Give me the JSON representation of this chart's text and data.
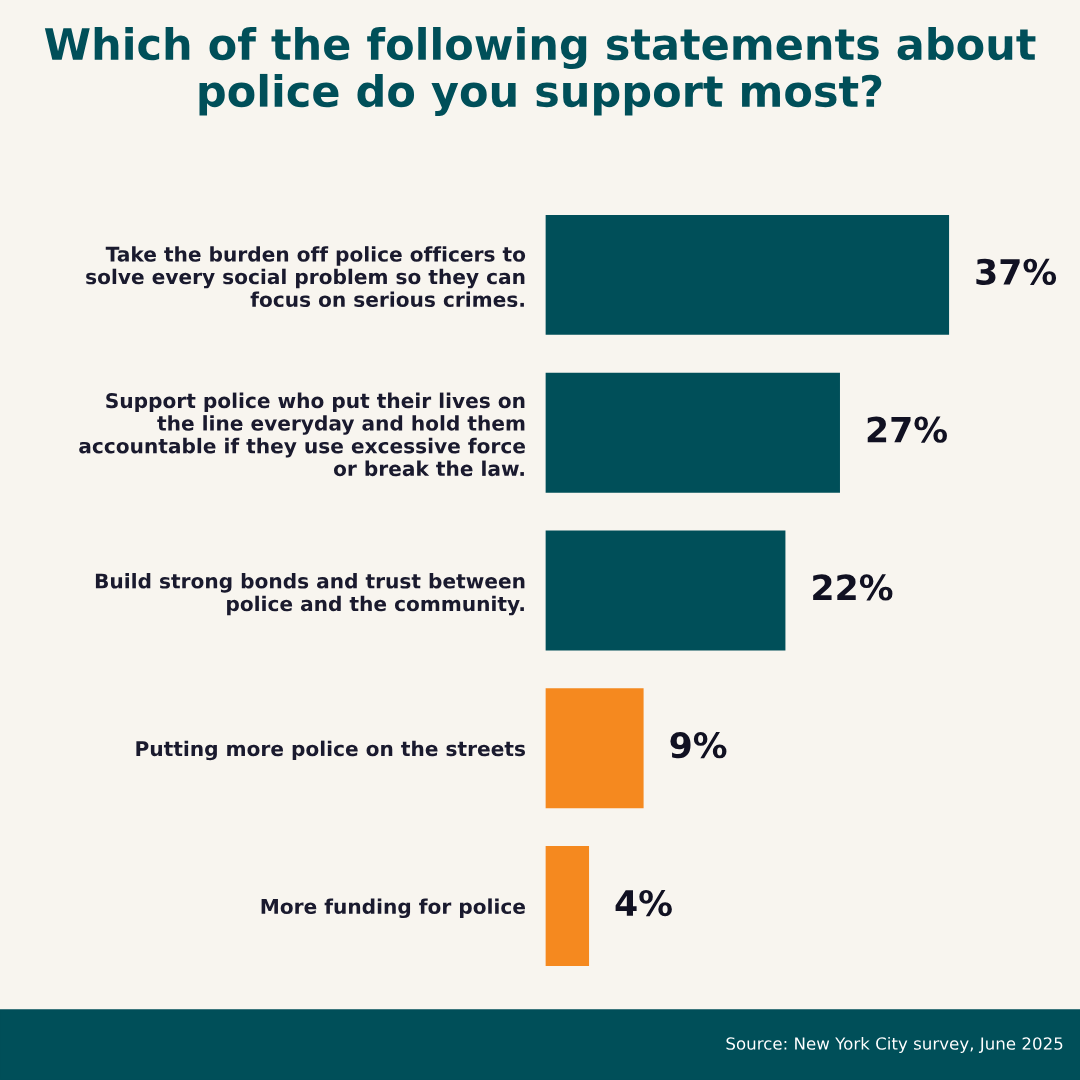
{
  "chart_data": {
    "type": "bar",
    "orientation": "horizontal",
    "title": "Which of the following statements about police do you support most?",
    "categories": [
      "Take the burden off police officers to solve every social problem so they can focus on serious crimes.",
      "Support police who put their lives on the line everyday and hold them accountable if they use excessive force or break the law.",
      "Build strong bonds and trust between police and the community.",
      "Putting more police on the streets",
      "More funding for police"
    ],
    "values": [
      37,
      27,
      22,
      9,
      4
    ],
    "colors": [
      "#004f59",
      "#004f59",
      "#004f59",
      "#f5891f",
      "#f5891f"
    ],
    "value_labels": [
      "37%",
      "27%",
      "22%",
      "9%",
      "4%"
    ],
    "xlim": [
      0,
      49
    ],
    "tick_labels": "y",
    "grid": false,
    "legend": false,
    "annotations": [
      "Source: New York City survey, June 2025"
    ]
  }
}
